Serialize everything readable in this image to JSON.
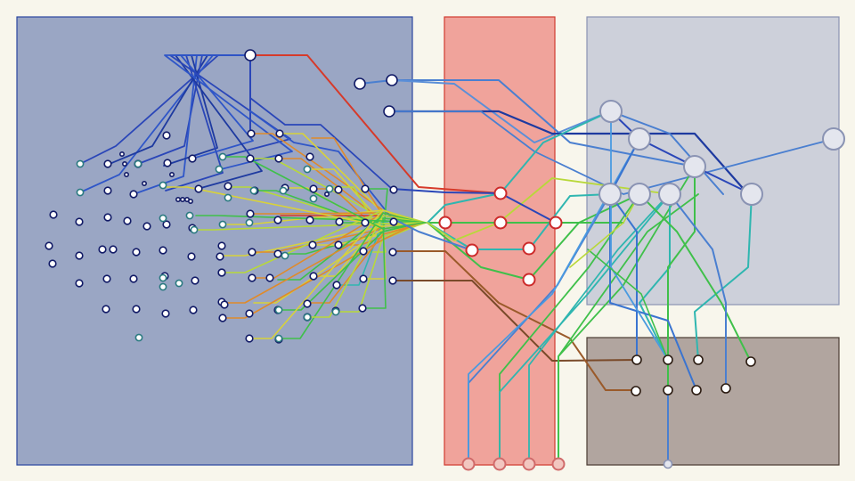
{
  "diagram": {
    "background": "#f8f6ec",
    "regions": [
      {
        "id": "left",
        "fill": "#9aa6c4",
        "stroke": "#2b46a0"
      },
      {
        "id": "middle",
        "fill": "#f0a39b",
        "stroke": "#d03a30"
      },
      {
        "id": "right-top",
        "fill": "#cdd0da",
        "stroke": "#8a93b3"
      },
      {
        "id": "right-bottom",
        "fill": "#b1a59f",
        "stroke": "#4a3b33"
      }
    ],
    "line_colors": {
      "blue": "#2a46b8",
      "light_blue": "#4a7fd0",
      "red": "#d63a2a",
      "orange": "#e08a2a",
      "yellow": "#d8d23a",
      "yellow_green": "#b8d83a",
      "green": "#3fc04a",
      "teal": "#2fb6b0",
      "brown": "#9a5a2a"
    },
    "node_styles": {
      "dark": {
        "fill": "#ffffff",
        "stroke": "#111a66"
      },
      "teal": {
        "fill": "#ffffff",
        "stroke": "#2a7a80"
      },
      "red": {
        "fill": "#ffffff",
        "stroke": "#cc2a2a"
      },
      "gray": {
        "fill": "#e4e6ee",
        "stroke": "#8a93b3"
      },
      "brown": {
        "fill": "#ffffff",
        "stroke": "#2a1a10"
      }
    }
  }
}
